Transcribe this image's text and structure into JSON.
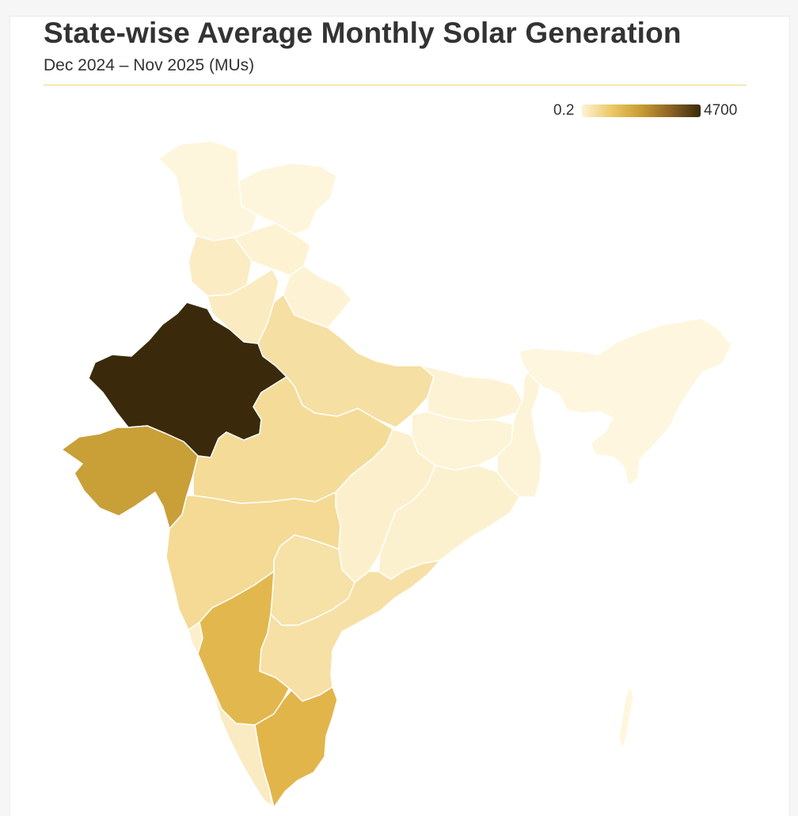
{
  "header": {
    "title": "State-wise Average Monthly Solar Generation",
    "subtitle": "Dec 2024 – Nov 2025 (MUs)"
  },
  "legend": {
    "min_label": "0.2",
    "max_label": "4700",
    "min_value": 0.2,
    "max_value": 4700,
    "color_stops": [
      "#fdf3d2",
      "#ecc965",
      "#c99b32",
      "#8a6322",
      "#3a2a0b"
    ]
  },
  "map": {
    "type": "choropleth",
    "region": "India",
    "regions": [
      {
        "id": "jammu-kashmir",
        "name": "Jammu & Kashmir",
        "color": "#fef6dc"
      },
      {
        "id": "ladakh",
        "name": "Ladakh",
        "color": "#fef6dc"
      },
      {
        "id": "himachal-pradesh",
        "name": "Himachal Pradesh",
        "color": "#fdf3d3"
      },
      {
        "id": "punjab",
        "name": "Punjab",
        "color": "#fbecc4"
      },
      {
        "id": "haryana",
        "name": "Haryana",
        "color": "#faebc0"
      },
      {
        "id": "uttarakhand",
        "name": "Uttarakhand",
        "color": "#fdf3d4"
      },
      {
        "id": "rajasthan",
        "name": "Rajasthan",
        "color": "#3a2a0b"
      },
      {
        "id": "uttar-pradesh",
        "name": "Uttar Pradesh",
        "color": "#f5dfa2"
      },
      {
        "id": "gujarat",
        "name": "Gujarat",
        "color": "#c99f38"
      },
      {
        "id": "madhya-pradesh",
        "name": "Madhya Pradesh",
        "color": "#f4dc98"
      },
      {
        "id": "bihar",
        "name": "Bihar",
        "color": "#fdf3d4"
      },
      {
        "id": "jharkhand",
        "name": "Jharkhand",
        "color": "#fdf3d6"
      },
      {
        "id": "west-bengal",
        "name": "West Bengal",
        "color": "#fdf4d8"
      },
      {
        "id": "chhattisgarh",
        "name": "Chhattisgarh",
        "color": "#fcf0cc"
      },
      {
        "id": "odisha",
        "name": "Odisha",
        "color": "#fcf1cf"
      },
      {
        "id": "maharashtra",
        "name": "Maharashtra",
        "color": "#f4da94"
      },
      {
        "id": "telangana",
        "name": "Telangana",
        "color": "#f6e1a6"
      },
      {
        "id": "andhra-pradesh",
        "name": "Andhra Pradesh",
        "color": "#f6e0a5"
      },
      {
        "id": "karnataka",
        "name": "Karnataka",
        "color": "#e2b84e"
      },
      {
        "id": "goa",
        "name": "Goa",
        "color": "#fcf0cc"
      },
      {
        "id": "kerala",
        "name": "Kerala",
        "color": "#faebc2"
      },
      {
        "id": "tamil-nadu",
        "name": "Tamil Nadu",
        "color": "#e2b54a"
      },
      {
        "id": "northeast",
        "name": "North-East States",
        "color": "#fef6de"
      },
      {
        "id": "andaman-nicobar",
        "name": "Andaman & Nicobar",
        "color": "#fef6de"
      }
    ]
  }
}
